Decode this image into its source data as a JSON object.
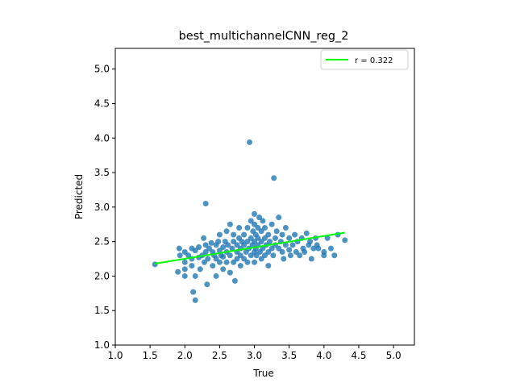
{
  "chart_data": {
    "type": "scatter",
    "title": "best_multichannelCNN_reg_2",
    "xlabel": "True",
    "ylabel": "Predicted",
    "xlim": [
      1.0,
      5.3
    ],
    "ylim": [
      1.0,
      5.3
    ],
    "xticks": [
      "1.0",
      "1.5",
      "2.0",
      "2.5",
      "3.0",
      "3.5",
      "4.0",
      "4.5",
      "5.0"
    ],
    "yticks": [
      "1.0",
      "1.5",
      "2.0",
      "2.5",
      "3.0",
      "3.5",
      "4.0",
      "4.5",
      "5.0"
    ],
    "grid": false,
    "legend": {
      "placement": "top-right",
      "label": "r = 0.322"
    },
    "colors": {
      "points": "#1f77b4",
      "fit_line": "#00ff00"
    },
    "fit_line": {
      "x": [
        1.57,
        4.3
      ],
      "y": [
        2.18,
        2.63
      ]
    },
    "points": [
      [
        1.57,
        2.17
      ],
      [
        1.9,
        2.06
      ],
      [
        1.92,
        2.4
      ],
      [
        1.93,
        2.3
      ],
      [
        2.0,
        2.35
      ],
      [
        2.0,
        2.2
      ],
      [
        2.0,
        2.1
      ],
      [
        2.0,
        2.0
      ],
      [
        2.05,
        2.3
      ],
      [
        2.1,
        2.4
      ],
      [
        2.1,
        2.25
      ],
      [
        2.1,
        2.15
      ],
      [
        2.12,
        1.77
      ],
      [
        2.15,
        1.65
      ],
      [
        2.15,
        2.37
      ],
      [
        2.15,
        2.0
      ],
      [
        2.2,
        2.27
      ],
      [
        2.2,
        2.42
      ],
      [
        2.22,
        2.1
      ],
      [
        2.25,
        2.3
      ],
      [
        2.27,
        2.55
      ],
      [
        2.28,
        2.2
      ],
      [
        2.3,
        3.05
      ],
      [
        2.3,
        2.45
      ],
      [
        2.3,
        2.35
      ],
      [
        2.32,
        1.88
      ],
      [
        2.33,
        2.25
      ],
      [
        2.35,
        2.4
      ],
      [
        2.38,
        2.48
      ],
      [
        2.4,
        2.15
      ],
      [
        2.4,
        2.35
      ],
      [
        2.42,
        2.3
      ],
      [
        2.45,
        2.0
      ],
      [
        2.45,
        2.45
      ],
      [
        2.45,
        2.25
      ],
      [
        2.48,
        2.5
      ],
      [
        2.5,
        2.37
      ],
      [
        2.5,
        2.2
      ],
      [
        2.5,
        2.6
      ],
      [
        2.52,
        2.3
      ],
      [
        2.55,
        2.42
      ],
      [
        2.55,
        2.1
      ],
      [
        2.55,
        2.28
      ],
      [
        2.58,
        2.5
      ],
      [
        2.6,
        2.35
      ],
      [
        2.6,
        2.2
      ],
      [
        2.6,
        2.65
      ],
      [
        2.62,
        2.45
      ],
      [
        2.65,
        2.3
      ],
      [
        2.65,
        2.05
      ],
      [
        2.65,
        2.75
      ],
      [
        2.68,
        2.4
      ],
      [
        2.7,
        2.5
      ],
      [
        2.7,
        2.2
      ],
      [
        2.7,
        2.6
      ],
      [
        2.72,
        1.93
      ],
      [
        2.75,
        2.35
      ],
      [
        2.75,
        2.45
      ],
      [
        2.75,
        2.25
      ],
      [
        2.78,
        2.55
      ],
      [
        2.78,
        2.7
      ],
      [
        2.8,
        2.4
      ],
      [
        2.8,
        2.15
      ],
      [
        2.8,
        2.3
      ],
      [
        2.82,
        2.5
      ],
      [
        2.85,
        2.45
      ],
      [
        2.85,
        2.6
      ],
      [
        2.85,
        2.25
      ],
      [
        2.88,
        2.35
      ],
      [
        2.9,
        2.7
      ],
      [
        2.9,
        2.5
      ],
      [
        2.9,
        2.2
      ],
      [
        2.92,
        2.4
      ],
      [
        2.93,
        3.94
      ],
      [
        2.95,
        2.55
      ],
      [
        2.95,
        2.3
      ],
      [
        2.95,
        2.8
      ],
      [
        2.97,
        2.45
      ],
      [
        2.98,
        2.65
      ],
      [
        3.0,
        2.35
      ],
      [
        3.0,
        2.5
      ],
      [
        3.0,
        2.2
      ],
      [
        3.0,
        2.75
      ],
      [
        3.0,
        2.9
      ],
      [
        3.02,
        2.4
      ],
      [
        3.02,
        2.6
      ],
      [
        3.03,
        2.3
      ],
      [
        3.05,
        2.55
      ],
      [
        3.05,
        2.45
      ],
      [
        3.05,
        2.7
      ],
      [
        3.07,
        2.85
      ],
      [
        3.08,
        2.35
      ],
      [
        3.1,
        2.5
      ],
      [
        3.1,
        2.25
      ],
      [
        3.1,
        2.65
      ],
      [
        3.12,
        2.4
      ],
      [
        3.12,
        2.8
      ],
      [
        3.15,
        2.55
      ],
      [
        3.15,
        2.3
      ],
      [
        3.15,
        2.7
      ],
      [
        3.17,
        2.45
      ],
      [
        3.2,
        2.6
      ],
      [
        3.2,
        2.35
      ],
      [
        3.2,
        2.15
      ],
      [
        3.22,
        2.5
      ],
      [
        3.25,
        2.4
      ],
      [
        3.25,
        2.75
      ],
      [
        3.27,
        2.3
      ],
      [
        3.28,
        3.42
      ],
      [
        3.3,
        2.55
      ],
      [
        3.3,
        2.45
      ],
      [
        3.32,
        2.65
      ],
      [
        3.35,
        2.4
      ],
      [
        3.35,
        2.85
      ],
      [
        3.38,
        2.5
      ],
      [
        3.4,
        2.35
      ],
      [
        3.4,
        2.6
      ],
      [
        3.42,
        2.25
      ],
      [
        3.45,
        2.7
      ],
      [
        3.45,
        2.45
      ],
      [
        3.5,
        2.55
      ],
      [
        3.5,
        2.38
      ],
      [
        3.52,
        2.3
      ],
      [
        3.55,
        2.45
      ],
      [
        3.58,
        2.6
      ],
      [
        3.6,
        2.35
      ],
      [
        3.62,
        2.5
      ],
      [
        3.65,
        2.3
      ],
      [
        3.68,
        2.55
      ],
      [
        3.7,
        2.4
      ],
      [
        3.72,
        2.35
      ],
      [
        3.75,
        2.62
      ],
      [
        3.78,
        2.45
      ],
      [
        3.8,
        2.5
      ],
      [
        3.82,
        2.25
      ],
      [
        3.85,
        2.4
      ],
      [
        3.88,
        2.55
      ],
      [
        3.9,
        2.45
      ],
      [
        3.92,
        2.4
      ],
      [
        4.0,
        2.35
      ],
      [
        4.0,
        2.3
      ],
      [
        4.05,
        2.55
      ],
      [
        4.1,
        2.4
      ],
      [
        4.15,
        2.3
      ],
      [
        4.2,
        2.6
      ],
      [
        4.3,
        2.52
      ]
    ]
  }
}
